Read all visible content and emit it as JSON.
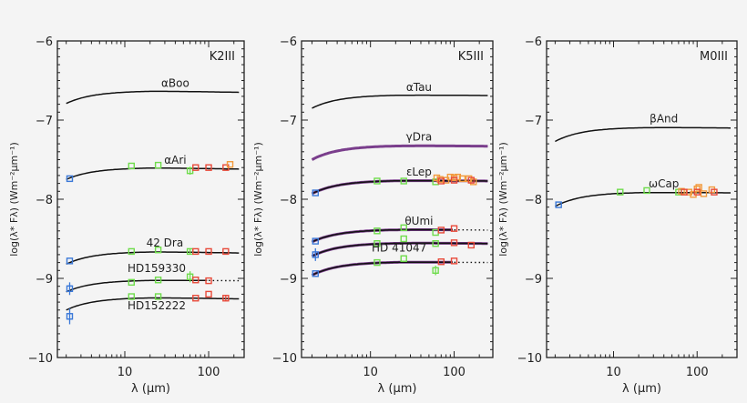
{
  "chart_data": [
    {
      "type": "line",
      "panel_label": "K2III",
      "xlabel": "λ (μm)",
      "ylabel": "log(λ* Fλ) (Wm⁻²μm⁻¹)",
      "xscale": "log",
      "xlim": [
        1.57,
        265
      ],
      "ylim": [
        -10,
        -6
      ],
      "xticks": [
        10,
        100
      ],
      "xtick_labels": [
        "10",
        "100"
      ],
      "yticks": [
        -10,
        -9,
        -8,
        -7,
        -6
      ],
      "ytick_labels": [
        "−10",
        "−9",
        "−8",
        "−7",
        "−6"
      ],
      "grid": false,
      "series": [
        {
          "name": "αBoo",
          "color": "#111111",
          "curve": {
            "start": -6.79,
            "plateau": -6.63,
            "end": -6.65
          },
          "label_at": [
            40,
            -6.58
          ],
          "points": []
        },
        {
          "name": "αAri",
          "color": "#111111",
          "curve": {
            "start": -7.75,
            "plateau": -7.6,
            "end": -7.62
          },
          "label_at": [
            40,
            -7.55
          ],
          "points": [
            {
              "x": 2.2,
              "y": -7.74,
              "band": "blue"
            },
            {
              "x": 12,
              "y": -7.58,
              "band": "green"
            },
            {
              "x": 25,
              "y": -7.57,
              "band": "green"
            },
            {
              "x": 60,
              "y": -7.64,
              "band": "green",
              "err": 0.05
            },
            {
              "x": 70,
              "y": -7.6,
              "band": "red"
            },
            {
              "x": 100,
              "y": -7.6,
              "band": "red"
            },
            {
              "x": 160,
              "y": -7.6,
              "band": "red"
            },
            {
              "x": 180,
              "y": -7.56,
              "band": "orange"
            }
          ]
        },
        {
          "name": "42 Dra",
          "color": "#111111",
          "curve": {
            "start": -8.82,
            "plateau": -8.66,
            "end": -8.68
          },
          "label_at": [
            30,
            -8.6
          ],
          "points": [
            {
              "x": 2.2,
              "y": -8.78,
              "band": "blue"
            },
            {
              "x": 12,
              "y": -8.66,
              "band": "green"
            },
            {
              "x": 25,
              "y": -8.64,
              "band": "green"
            },
            {
              "x": 60,
              "y": -8.66,
              "band": "green",
              "err": 0.04
            },
            {
              "x": 70,
              "y": -8.66,
              "band": "red"
            },
            {
              "x": 100,
              "y": -8.66,
              "band": "red"
            },
            {
              "x": 160,
              "y": -8.66,
              "band": "red"
            }
          ]
        },
        {
          "name": "HD159330",
          "color": "#111111",
          "curve": {
            "start": -9.17,
            "plateau": -9.02,
            "end": -9.03,
            "dotted_from": 100
          },
          "label_at": [
            24,
            -8.92
          ],
          "points": [
            {
              "x": 2.2,
              "y": -9.13,
              "band": "blue",
              "err": 0.08
            },
            {
              "x": 12,
              "y": -9.05,
              "band": "green"
            },
            {
              "x": 25,
              "y": -9.02,
              "band": "green"
            },
            {
              "x": 60,
              "y": -8.98,
              "band": "green",
              "err": 0.07
            },
            {
              "x": 70,
              "y": -9.02,
              "band": "red"
            },
            {
              "x": 100,
              "y": -9.03,
              "band": "red"
            }
          ]
        },
        {
          "name": "HD152222",
          "color": "#111111",
          "curve": {
            "start": -9.4,
            "plateau": -9.24,
            "end": -9.26
          },
          "label_at": [
            24,
            -9.39
          ],
          "points": [
            {
              "x": 2.2,
              "y": -9.48,
              "band": "blue",
              "err": 0.1
            },
            {
              "x": 12,
              "y": -9.23,
              "band": "green"
            },
            {
              "x": 25,
              "y": -9.23,
              "band": "green"
            },
            {
              "x": 70,
              "y": -9.25,
              "band": "red"
            },
            {
              "x": 100,
              "y": -9.2,
              "band": "red"
            },
            {
              "x": 160,
              "y": -9.25,
              "band": "red",
              "err": 0.04
            }
          ]
        }
      ]
    },
    {
      "type": "line",
      "panel_label": "K5III",
      "xlabel": "λ (μm)",
      "ylabel": "log(λ* Fλ) (Wm⁻²μm⁻¹)",
      "xscale": "log",
      "xlim": [
        1.5,
        290
      ],
      "ylim": [
        -10,
        -6
      ],
      "xticks": [
        10,
        100
      ],
      "xtick_labels": [
        "10",
        "100"
      ],
      "yticks": [
        -10,
        -9,
        -8,
        -7,
        -6
      ],
      "ytick_labels": [
        "−10",
        "−9",
        "−8",
        "−7",
        "−6"
      ],
      "grid": false,
      "series": [
        {
          "name": "αTau",
          "color": "#111111",
          "curve": {
            "start": -6.85,
            "plateau": -6.68,
            "end": -6.69
          },
          "label_at": [
            38,
            -6.63
          ],
          "points": []
        },
        {
          "name": "γDra",
          "color": "#7a3e8c",
          "curve": {
            "start": -7.5,
            "plateau": -7.32,
            "end": -7.33
          },
          "label_at": [
            38,
            -7.26
          ],
          "points": []
        },
        {
          "name": "εLep",
          "color": "#111111",
          "curve": {
            "start": -7.93,
            "plateau": -7.76,
            "end": -7.77
          },
          "label_at": [
            38,
            -7.7
          ],
          "points": [
            {
              "x": 2.2,
              "y": -7.92,
              "band": "blue"
            },
            {
              "x": 12,
              "y": -7.77,
              "band": "green"
            },
            {
              "x": 25,
              "y": -7.77,
              "band": "green"
            },
            {
              "x": 60,
              "y": -7.78,
              "band": "green"
            },
            {
              "x": 62,
              "y": -7.73,
              "band": "orange"
            },
            {
              "x": 68,
              "y": -7.75,
              "band": "orange"
            },
            {
              "x": 80,
              "y": -7.76,
              "band": "orange"
            },
            {
              "x": 90,
              "y": -7.72,
              "band": "orange"
            },
            {
              "x": 100,
              "y": -7.73,
              "band": "orange"
            },
            {
              "x": 110,
              "y": -7.72,
              "band": "orange"
            },
            {
              "x": 125,
              "y": -7.74,
              "band": "orange"
            },
            {
              "x": 150,
              "y": -7.74,
              "band": "orange"
            },
            {
              "x": 170,
              "y": -7.78,
              "band": "orange"
            },
            {
              "x": 70,
              "y": -7.77,
              "band": "red"
            },
            {
              "x": 100,
              "y": -7.76,
              "band": "red"
            },
            {
              "x": 160,
              "y": -7.76,
              "band": "red"
            }
          ]
        },
        {
          "name": "θUmi",
          "color": "#111111",
          "curve": {
            "start": -8.54,
            "plateau": -8.38,
            "end": -8.39,
            "dotted_from": 100
          },
          "label_at": [
            38,
            -8.32
          ],
          "points": [
            {
              "x": 2.2,
              "y": -8.53,
              "band": "blue"
            },
            {
              "x": 12,
              "y": -8.4,
              "band": "green"
            },
            {
              "x": 25,
              "y": -8.36,
              "band": "green"
            },
            {
              "x": 60,
              "y": -8.42,
              "band": "green"
            },
            {
              "x": 70,
              "y": -8.39,
              "band": "red"
            },
            {
              "x": 100,
              "y": -8.37,
              "band": "red"
            }
          ]
        },
        {
          "name": "",
          "color": "#111111",
          "curve": {
            "start": -8.72,
            "plateau": -8.55,
            "end": -8.56
          },
          "points": [
            {
              "x": 2.2,
              "y": -8.7,
              "band": "blue",
              "err": 0.08
            },
            {
              "x": 12,
              "y": -8.56,
              "band": "green"
            },
            {
              "x": 25,
              "y": -8.5,
              "band": "green"
            },
            {
              "x": 60,
              "y": -8.56,
              "band": "green"
            },
            {
              "x": 100,
              "y": -8.55,
              "band": "red"
            },
            {
              "x": 160,
              "y": -8.58,
              "band": "red"
            }
          ]
        },
        {
          "name": "HD 41047",
          "color": "#111111",
          "curve": {
            "start": -8.96,
            "plateau": -8.79,
            "end": -8.8,
            "dotted_from": 100
          },
          "label_at": [
            22,
            -8.66
          ],
          "points": [
            {
              "x": 2.2,
              "y": -8.94,
              "band": "blue"
            },
            {
              "x": 12,
              "y": -8.8,
              "band": "green"
            },
            {
              "x": 25,
              "y": -8.75,
              "band": "green"
            },
            {
              "x": 60,
              "y": -8.9,
              "band": "green",
              "err": 0.06
            },
            {
              "x": 70,
              "y": -8.79,
              "band": "red"
            },
            {
              "x": 100,
              "y": -8.78,
              "band": "red"
            }
          ]
        }
      ]
    },
    {
      "type": "line",
      "panel_label": "M0III",
      "xlabel": "λ (μm)",
      "ylabel": "log(λ* Fλ) (Wm⁻²μm⁻¹)",
      "xscale": "log",
      "xlim": [
        1.58,
        300
      ],
      "ylim": [
        -10,
        -6
      ],
      "xticks": [
        10,
        100
      ],
      "xtick_labels": [
        "10",
        "100"
      ],
      "yticks": [
        -10,
        -9,
        -8,
        -7,
        -6
      ],
      "ytick_labels": [
        "−10",
        "−9",
        "−8",
        "−7",
        "−6"
      ],
      "grid": false,
      "series": [
        {
          "name": "βAnd",
          "color": "#111111",
          "curve": {
            "start": -7.27,
            "plateau": -7.09,
            "end": -7.1
          },
          "label_at": [
            40,
            -7.03
          ],
          "points": []
        },
        {
          "name": "ωCap",
          "color": "#111111",
          "curve": {
            "start": -8.09,
            "plateau": -7.91,
            "end": -7.92
          },
          "label_at": [
            40,
            -7.85
          ],
          "points": [
            {
              "x": 2.2,
              "y": -8.07,
              "band": "blue"
            },
            {
              "x": 12,
              "y": -7.91,
              "band": "green"
            },
            {
              "x": 25,
              "y": -7.89,
              "band": "green"
            },
            {
              "x": 60,
              "y": -7.91,
              "band": "green"
            },
            {
              "x": 65,
              "y": -7.9,
              "band": "orange"
            },
            {
              "x": 80,
              "y": -7.91,
              "band": "orange"
            },
            {
              "x": 90,
              "y": -7.94,
              "band": "orange"
            },
            {
              "x": 100,
              "y": -7.87,
              "band": "orange"
            },
            {
              "x": 105,
              "y": -7.85,
              "band": "orange"
            },
            {
              "x": 120,
              "y": -7.93,
              "band": "orange"
            },
            {
              "x": 150,
              "y": -7.88,
              "band": "orange"
            },
            {
              "x": 70,
              "y": -7.91,
              "band": "red"
            },
            {
              "x": 100,
              "y": -7.91,
              "band": "red"
            },
            {
              "x": 160,
              "y": -7.91,
              "band": "red"
            }
          ]
        }
      ]
    }
  ],
  "band_colors": {
    "blue": "#3a78d8",
    "green": "#6fdc4c",
    "red": "#e84a3a",
    "orange": "#f29a3c"
  }
}
